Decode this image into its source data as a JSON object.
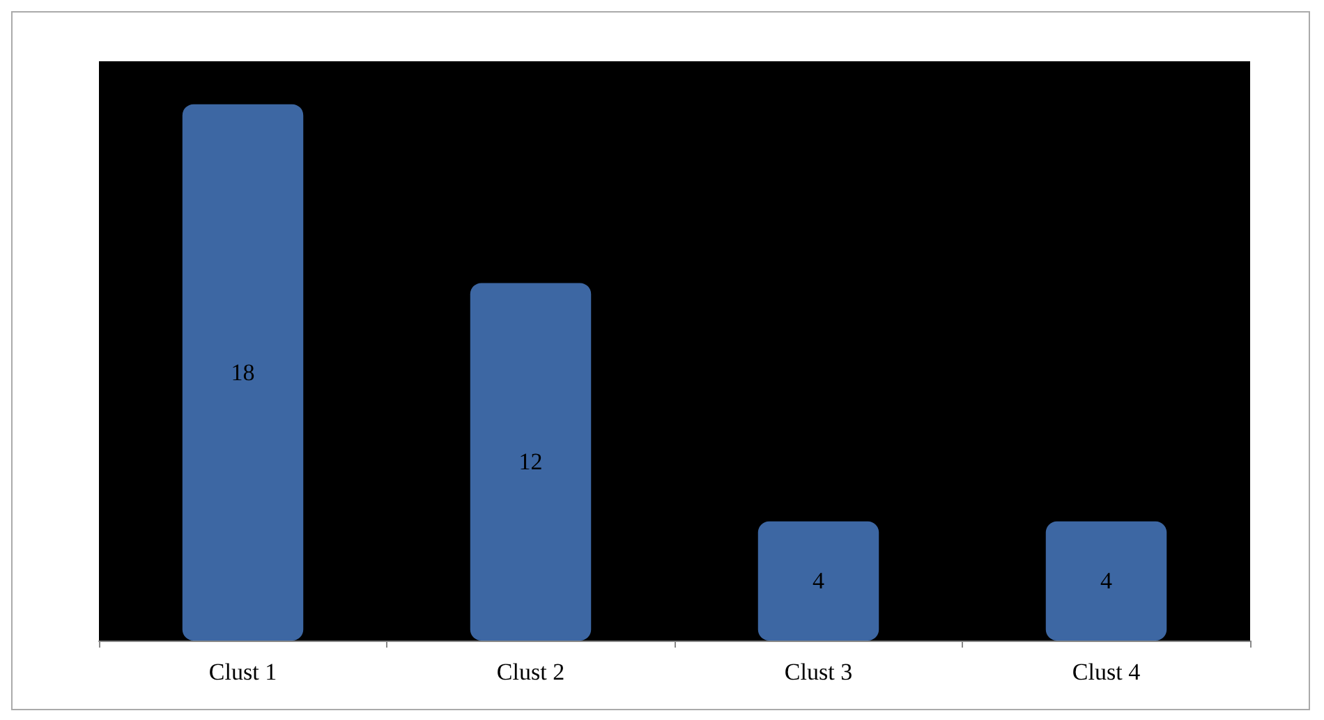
{
  "chart_data": {
    "type": "bar",
    "categories": [
      "Clust 1",
      "Clust 2",
      "Clust 3",
      "Clust 4"
    ],
    "values": [
      18,
      12,
      4,
      4
    ],
    "color": "#3d67a3",
    "data_labels": true
  }
}
